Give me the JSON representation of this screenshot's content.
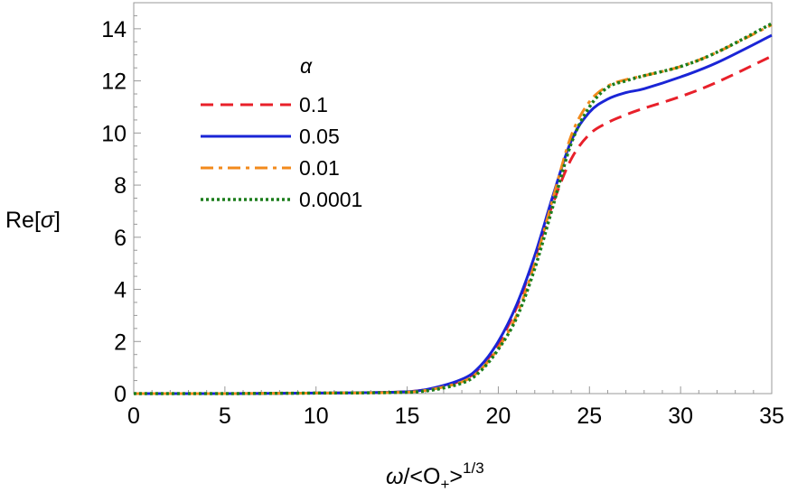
{
  "chart_data": {
    "type": "line",
    "title": "",
    "xlabel_parts": {
      "omega": "ω",
      "slash": "/<O",
      "sub": "+",
      "close": ">",
      "sup": "1/3"
    },
    "ylabel_parts": {
      "pre": "Re[",
      "sigma": "σ",
      "post": "]"
    },
    "xlim": [
      0,
      35
    ],
    "ylim": [
      0,
      15
    ],
    "xticks": [
      0,
      5,
      10,
      15,
      20,
      25,
      30,
      35
    ],
    "yticks": [
      0,
      2,
      4,
      6,
      8,
      10,
      12,
      14
    ],
    "grid": false,
    "legend_title": "α",
    "legend_position": "top-left",
    "series": [
      {
        "name": "0.1",
        "color": "#e8202a",
        "dash": "dashed",
        "x": [
          0,
          5,
          10,
          14,
          16,
          18,
          19,
          20,
          21,
          22,
          23,
          24,
          25,
          26,
          27,
          28,
          30,
          32,
          35
        ],
        "y": [
          0,
          0,
          0.02,
          0.05,
          0.15,
          0.5,
          1.0,
          1.9,
          3.3,
          5.2,
          7.3,
          9.0,
          9.95,
          10.4,
          10.7,
          10.95,
          11.4,
          11.95,
          12.95
        ]
      },
      {
        "name": "0.05",
        "color": "#1a25d6",
        "dash": "solid",
        "x": [
          0,
          5,
          10,
          14,
          16,
          18,
          19,
          20,
          21,
          22,
          23,
          24,
          25,
          26,
          27,
          28,
          30,
          32,
          35
        ],
        "y": [
          0,
          0,
          0.02,
          0.05,
          0.15,
          0.55,
          1.05,
          2.0,
          3.4,
          5.3,
          7.6,
          9.7,
          10.8,
          11.3,
          11.55,
          11.7,
          12.15,
          12.7,
          13.75
        ]
      },
      {
        "name": "0.01",
        "color": "#f28a1c",
        "dash": "dashdot",
        "x": [
          0,
          5,
          10,
          14,
          16,
          18,
          19,
          20,
          21,
          22,
          23,
          24,
          25,
          26,
          27,
          28,
          30,
          32,
          35
        ],
        "y": [
          0,
          0,
          0.02,
          0.04,
          0.12,
          0.45,
          0.9,
          1.75,
          3.0,
          5.0,
          7.5,
          9.9,
          11.2,
          11.8,
          12.05,
          12.2,
          12.55,
          13.1,
          14.15
        ]
      },
      {
        "name": "0.0001",
        "color": "#1c7d1c",
        "dash": "dotted",
        "x": [
          0,
          5,
          10,
          14,
          16,
          18,
          19,
          20,
          21,
          22,
          23,
          24,
          25,
          26,
          27,
          28,
          30,
          32,
          35
        ],
        "y": [
          0,
          0,
          0.02,
          0.04,
          0.1,
          0.4,
          0.85,
          1.7,
          2.9,
          4.8,
          7.2,
          9.6,
          11.0,
          11.75,
          12.0,
          12.2,
          12.55,
          13.1,
          14.2
        ]
      }
    ]
  }
}
